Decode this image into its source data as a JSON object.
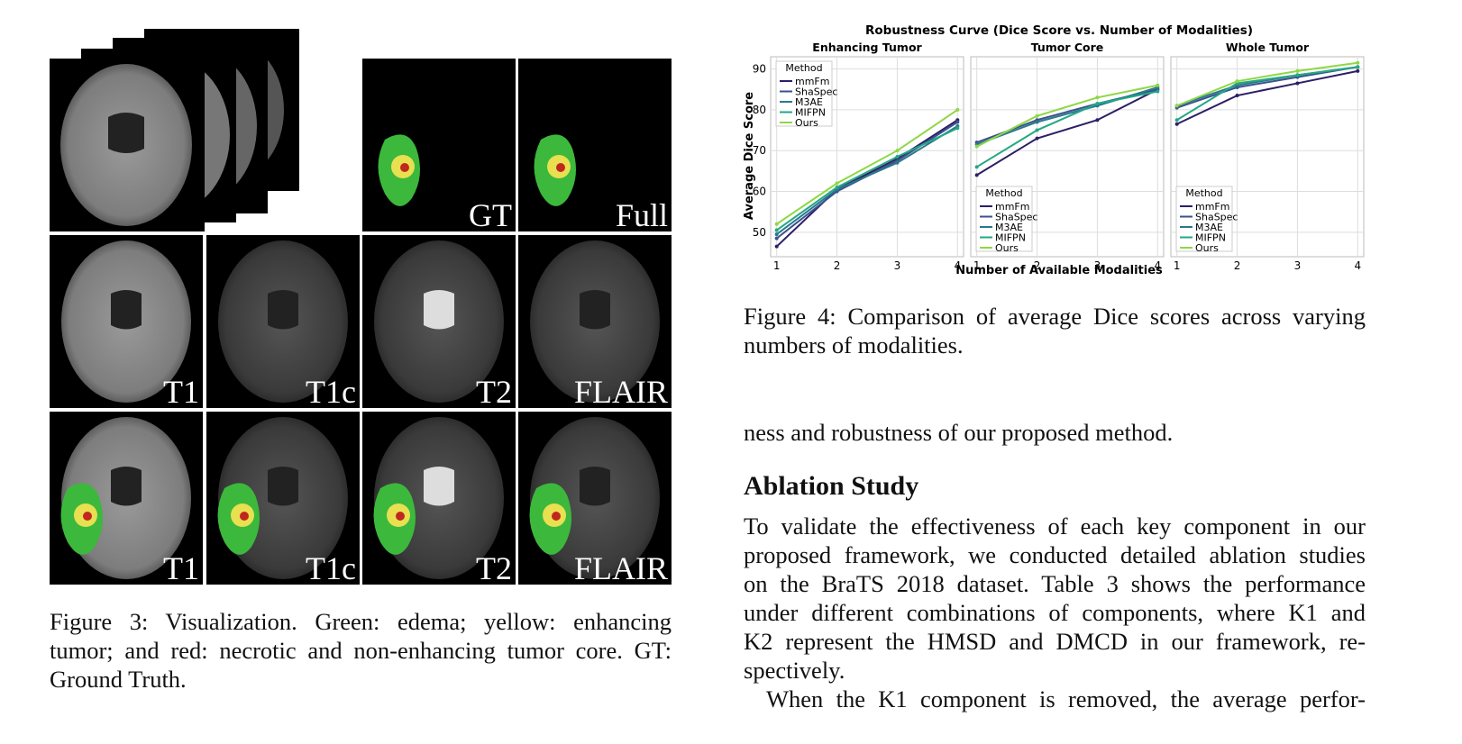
{
  "figure3": {
    "top_labels": [
      "GT",
      "Full"
    ],
    "row2_labels": [
      "T1",
      "T1c",
      "T2",
      "FLAIR"
    ],
    "row3_labels": [
      "T1",
      "T1c",
      "T2",
      "FLAIR"
    ],
    "caption_lines": [
      "Figure 3: Visualization. Green: edema; yellow: enhancing",
      "tumor; and red: necrotic and non-enhancing tumor core. GT:",
      "Ground Truth."
    ]
  },
  "figure4": {
    "suptitle": "Robustness Curve (Dice Score vs. Number of Modalities)",
    "ylabel": "Average Dice Score",
    "xlabel": "Number of Available Modalities",
    "caption_lines": [
      "Figure 4: Comparison of average Dice scores across varying",
      "numbers of modalities."
    ]
  },
  "chart_data": [
    {
      "type": "line",
      "title": "Enhancing Tumor",
      "x": [
        1,
        2,
        3,
        4
      ],
      "xlim": [
        0.9,
        4.1
      ],
      "xticks": [
        1,
        2,
        3,
        4
      ],
      "ylim": [
        44,
        93
      ],
      "yticks": [
        50,
        60,
        70,
        80,
        90
      ],
      "grid": true,
      "legend_title": "Method",
      "legend": "upper left",
      "series": [
        {
          "name": "mmFm",
          "color": "#2d1e66",
          "values": [
            46.5,
            60.5,
            68,
            77.5
          ]
        },
        {
          "name": "ShaSpec",
          "color": "#3b528b",
          "values": [
            48.5,
            60,
            67.5,
            77
          ]
        },
        {
          "name": "M3AE",
          "color": "#2a788e",
          "values": [
            49.5,
            60.5,
            67,
            76
          ]
        },
        {
          "name": "MIFPN",
          "color": "#22a884",
          "values": [
            50.5,
            61,
            68.5,
            75.5
          ]
        },
        {
          "name": "Ours",
          "color": "#8fd744",
          "values": [
            52,
            62,
            70,
            80
          ]
        }
      ]
    },
    {
      "type": "line",
      "title": "Tumor Core",
      "x": [
        1,
        2,
        3,
        4
      ],
      "xlim": [
        0.9,
        4.1
      ],
      "xticks": [
        1,
        2,
        3,
        4
      ],
      "ylim": [
        44,
        93
      ],
      "yticks": [
        50,
        60,
        70,
        80,
        90
      ],
      "grid": true,
      "legend_title": "Method",
      "legend": "lower left",
      "series": [
        {
          "name": "mmFm",
          "color": "#2d1e66",
          "values": [
            64,
            73,
            77.5,
            85
          ]
        },
        {
          "name": "ShaSpec",
          "color": "#3b528b",
          "values": [
            72,
            77.5,
            81.5,
            85
          ]
        },
        {
          "name": "M3AE",
          "color": "#2a788e",
          "values": [
            71.5,
            77,
            81,
            85.5
          ]
        },
        {
          "name": "MIFPN",
          "color": "#22a884",
          "values": [
            66,
            75,
            81.5,
            84.5
          ]
        },
        {
          "name": "Ours",
          "color": "#8fd744",
          "values": [
            71,
            78.5,
            83,
            86
          ]
        }
      ]
    },
    {
      "type": "line",
      "title": "Whole Tumor",
      "x": [
        1,
        2,
        3,
        4
      ],
      "xlim": [
        0.9,
        4.1
      ],
      "xticks": [
        1,
        2,
        3,
        4
      ],
      "ylim": [
        44,
        93
      ],
      "yticks": [
        50,
        60,
        70,
        80,
        90
      ],
      "grid": true,
      "legend_title": "Method",
      "legend": "lower left",
      "series": [
        {
          "name": "mmFm",
          "color": "#2d1e66",
          "values": [
            76.5,
            83.5,
            86.5,
            89.5
          ]
        },
        {
          "name": "ShaSpec",
          "color": "#3b528b",
          "values": [
            80.5,
            85.5,
            88,
            90.5
          ]
        },
        {
          "name": "M3AE",
          "color": "#2a788e",
          "values": [
            81,
            86,
            88.5,
            90.5
          ]
        },
        {
          "name": "MIFPN",
          "color": "#22a884",
          "values": [
            77.5,
            86.5,
            88.5,
            90.5
          ]
        },
        {
          "name": "Ours",
          "color": "#8fd744",
          "values": [
            81,
            87,
            89.5,
            91.5
          ]
        }
      ]
    }
  ],
  "text": {
    "intro_line": "ness and robustness of our proposed method.",
    "heading": "Ablation Study",
    "para1_lines": [
      "To validate the effectiveness of each key component in our",
      "proposed framework, we conducted detailed ablation studies",
      "on the BraTS 2018 dataset. Table 3 shows the performance",
      "under different combinations of components, where K1 and",
      "K2 represent the HMSD and DMCD in our framework, re-",
      "spectively."
    ],
    "para2_line": "When the K1 component is removed, the average perfor-"
  }
}
